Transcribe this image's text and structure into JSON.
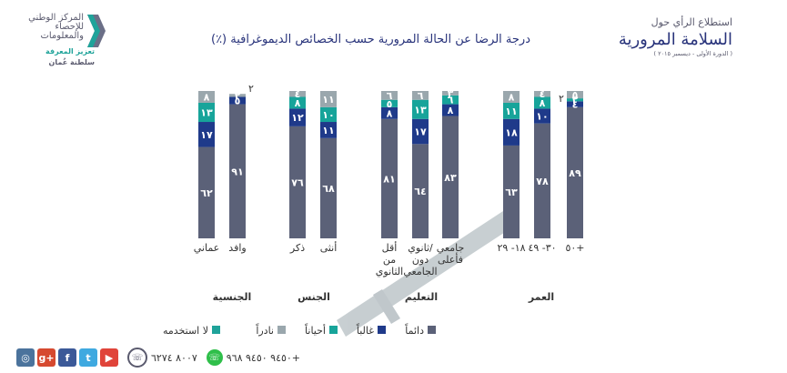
{
  "colors": {
    "always": "#5b6178",
    "often": "#1f3a8a",
    "sometimes": "#17a49a",
    "rarely": "#9aa7ad",
    "teal_accent": "#1fa39a",
    "title": "#27327a",
    "logo_gray": "#5a5a6e"
  },
  "logo": {
    "line1": "المركز الوطني",
    "line2": "للإحصاء",
    "line3": "والمعلومات",
    "slogan": "تعزيز المعرفة",
    "country": "سلطنة عُمان"
  },
  "survey": {
    "heading": "استطلاع الرأي حول",
    "name": "السلامة المرورية",
    "edition": "( الدورة الأولى - ديسمبر ٢٠١٥ )"
  },
  "chart_title": "درجة الرضا عن الحالة المرورية حسب الخصائص الديموغرافية (٪)",
  "chart_data": {
    "type": "bar",
    "stacked": true,
    "value_labels": "Arabic-Indic numerals",
    "groups": [
      {
        "label": "العمر",
        "categories": [
          "٥٠+",
          "٣٠- ٤٩",
          "١٨- ٢٩"
        ]
      },
      {
        "label": "التعليم",
        "categories": [
          "جامعي فأعلى",
          "ثانوي/ دون الجامعي",
          "أقل من الثانوي"
        ]
      },
      {
        "label": "الجنس",
        "categories": [
          "أنثى",
          "ذكر"
        ]
      },
      {
        "label": "الجنسية",
        "categories": [
          "وافد",
          "عماني"
        ]
      }
    ],
    "series": [
      {
        "name": "دائماً",
        "color": "#5b6178",
        "values": [
          89,
          78,
          63,
          83,
          64,
          81,
          68,
          76,
          91,
          62
        ]
      },
      {
        "name": "غالباً",
        "color": "#1f3a8a",
        "values": [
          4,
          10,
          18,
          8,
          17,
          8,
          11,
          12,
          5,
          17
        ]
      },
      {
        "name": "أحياناً",
        "color": "#17a49a",
        "values": [
          2,
          8,
          11,
          6,
          13,
          5,
          10,
          8,
          0,
          13
        ]
      },
      {
        "name": "نادراً",
        "color": "#9aa7ad",
        "values": [
          5,
          4,
          8,
          3,
          6,
          6,
          11,
          4,
          2,
          8
        ]
      },
      {
        "name": "لا استخدمه",
        "color": "#cfcfcf",
        "values": [
          0,
          0,
          0,
          0,
          0,
          0,
          0,
          0,
          2,
          0
        ]
      }
    ],
    "labels": [
      [
        "٨٩",
        "٤",
        "٢",
        "٥"
      ],
      [
        "٧٨",
        "١٠",
        "٨",
        "٤"
      ],
      [
        "٦٣",
        "١٨",
        "١١",
        "٨"
      ],
      [
        "٨٣",
        "٨",
        "٦",
        "٣"
      ],
      [
        "٦٤",
        "١٧",
        "١٣",
        "٦"
      ],
      [
        "٨١",
        "٨",
        "٥",
        "٦"
      ],
      [
        "٦٨",
        "١١",
        "١٠",
        "١١"
      ],
      [
        "٧٦",
        "١٢",
        "٨",
        "٤"
      ],
      [
        "٩١",
        "٥",
        "",
        "٢"
      ],
      [
        "٦٢",
        "١٧",
        "١٣",
        "٨"
      ]
    ],
    "extra_labels": [
      "",
      "",
      "",
      "",
      "",
      "",
      "",
      "",
      "٢",
      ""
    ],
    "side_labels": [
      "٢",
      "",
      "",
      "",
      "",
      "",
      "",
      "",
      "",
      ""
    ],
    "category_labels": [
      [
        "٥٠+"
      ],
      [
        "٣٠- ٤٩"
      ],
      [
        "١٨- ٢٩"
      ],
      [
        "جامعي",
        "فأعلى"
      ],
      [
        "ثانوي/",
        "دون",
        "الجامعي"
      ],
      [
        "أقل",
        "من",
        "الثانوي"
      ],
      [
        "أنثى"
      ],
      [
        "ذكر"
      ],
      [
        "وافد"
      ],
      [
        "عماني"
      ]
    ],
    "ylim": [
      0,
      100
    ]
  },
  "legend": [
    {
      "label": "دائماً",
      "color": "#5b6178"
    },
    {
      "label": "غالباً",
      "color": "#1f3a8a"
    },
    {
      "label": "أحياناً",
      "color": "#17a49a"
    },
    {
      "label": "نادراً",
      "color": "#9aa7ad"
    },
    {
      "label": "لا استخدمه",
      "color": "#1fa39a"
    }
  ],
  "footer": {
    "phone1": "٨٠٠٧ ٦٢٧٤",
    "phone2": "٩٤٥٠ ٩٤٥٠ ٩٦٨+",
    "social": [
      {
        "icon": "youtube-icon",
        "glyph": "▶",
        "color": "#e0443a"
      },
      {
        "icon": "twitter-icon",
        "glyph": "t",
        "color": "#3fa9e0"
      },
      {
        "icon": "facebook-icon",
        "glyph": "f",
        "color": "#3b5998"
      },
      {
        "icon": "google-plus-icon",
        "glyph": "g+",
        "color": "#d6492f"
      },
      {
        "icon": "instagram-icon",
        "glyph": "◎",
        "color": "#4b739c"
      }
    ]
  }
}
